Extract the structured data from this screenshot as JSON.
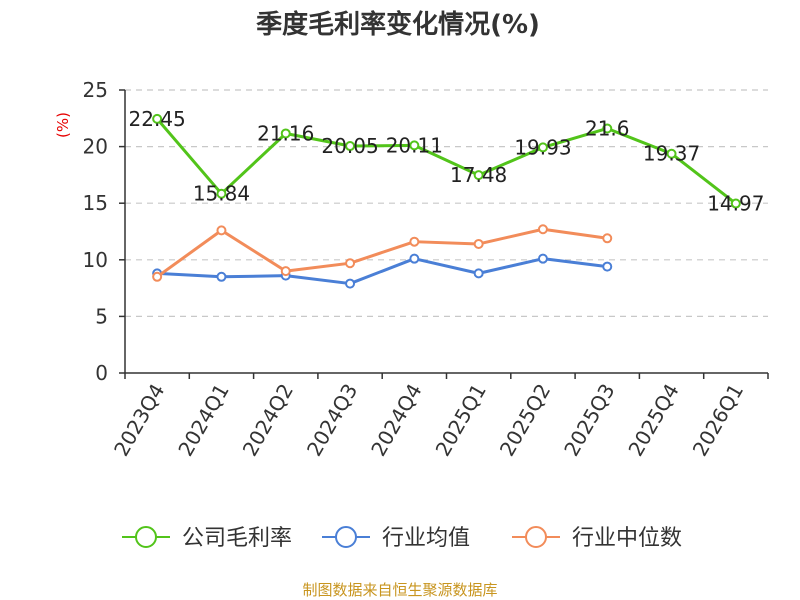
{
  "chart_data": {
    "type": "line",
    "title": "季度毛利率变化情况(%)",
    "ylabel": "(%)",
    "ylim": [
      0,
      25
    ],
    "yticks": [
      0,
      5,
      10,
      15,
      20,
      25
    ],
    "grid": true,
    "legend_position": "bottom",
    "categories": [
      "2023Q4",
      "2024Q1",
      "2024Q2",
      "2024Q3",
      "2024Q4",
      "2025Q1",
      "2025Q2",
      "2025Q3",
      "2025Q4",
      "2026Q1"
    ],
    "series": [
      {
        "name": "公司毛利率",
        "color": "#52c41a",
        "show_labels": true,
        "values": [
          22.45,
          15.84,
          21.16,
          20.05,
          20.11,
          17.48,
          19.93,
          21.6,
          19.37,
          14.97
        ]
      },
      {
        "name": "行业均值",
        "color": "#4a7fd6",
        "show_labels": false,
        "values": [
          8.8,
          8.5,
          8.6,
          7.9,
          10.1,
          8.8,
          10.1,
          9.4,
          null,
          null
        ]
      },
      {
        "name": "行业中位数",
        "color": "#f28c5a",
        "show_labels": false,
        "values": [
          8.5,
          12.6,
          9.0,
          9.7,
          11.6,
          11.4,
          12.7,
          11.9,
          null,
          null
        ]
      }
    ]
  },
  "footer": {
    "source": "制图数据来自恒生聚源数据库"
  },
  "colors": {
    "grid": "#c8c8c8",
    "axis": "#333333",
    "source": "#c8951f",
    "unit": "#e60000"
  }
}
